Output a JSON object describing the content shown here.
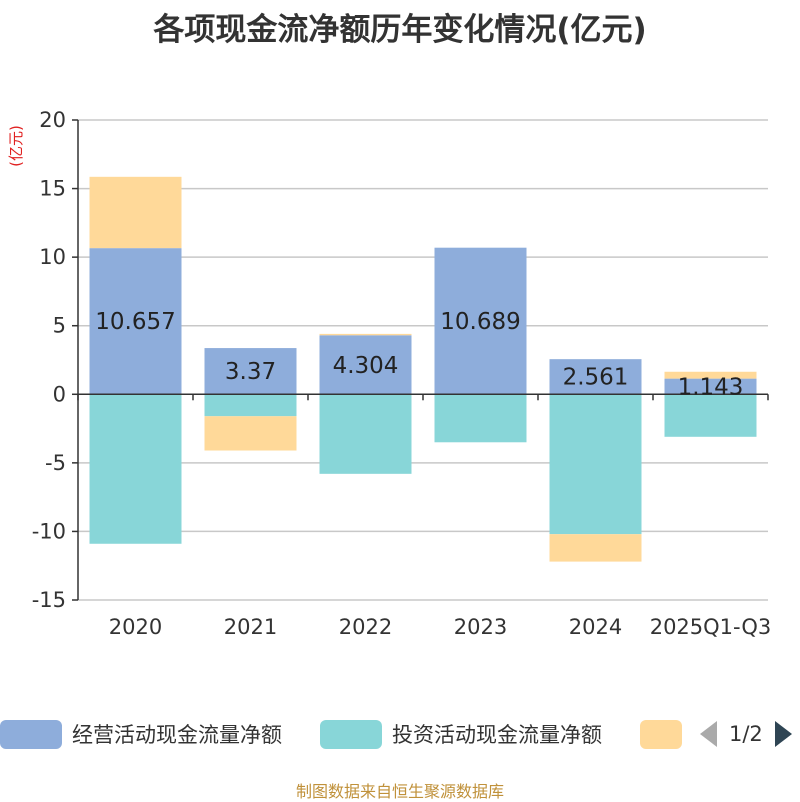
{
  "chart_data": {
    "type": "bar",
    "stacked": true,
    "title": "各项现金流净额历年变化情况(亿元)",
    "ylabel": "(亿元)",
    "xlabel": "",
    "categories": [
      "2020",
      "2021",
      "2022",
      "2023",
      "2024",
      "2025Q1-Q3"
    ],
    "ylim": [
      -15,
      20
    ],
    "yticks": [
      20,
      15,
      10,
      5,
      0,
      -5,
      -10,
      -15
    ],
    "series": [
      {
        "name": "经营活动现金流量净额",
        "color": "#8eaddb",
        "values": [
          10.657,
          3.37,
          4.304,
          10.689,
          2.561,
          1.143
        ],
        "labels": [
          "10.657",
          "3.37",
          "4.304",
          "10.689",
          "2.561",
          "1.143"
        ]
      },
      {
        "name": "投资活动现金流量净额",
        "color": "#88d6d8",
        "values": [
          -10.9,
          -1.6,
          -5.8,
          -3.5,
          -10.2,
          -3.1
        ]
      },
      {
        "name": "",
        "color": "#ffd999",
        "values": [
          5.2,
          -2.5,
          0.1,
          0,
          -2.0,
          0.5
        ]
      }
    ]
  },
  "legend": {
    "items": [
      {
        "label": "经营活动现金流量净额",
        "color": "#8eaddb"
      },
      {
        "label": "投资活动现金流量净额",
        "color": "#88d6d8"
      },
      {
        "label": "",
        "color": "#ffd999"
      }
    ],
    "page": "1/2"
  },
  "source": "制图数据来自恒生聚源数据库"
}
